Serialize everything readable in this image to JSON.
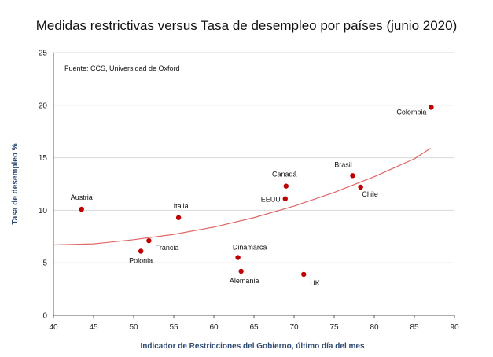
{
  "chart_data": {
    "type": "scatter",
    "title": "Medidas restrictivas versus Tasa de desempleo por países (junio 2020)",
    "xlabel": "Indicador de Restricciones del Gobierno, último día del mes",
    "ylabel": "Tasa de desempleo %",
    "annotation": "Fuente: CCS, Universidad de Oxford",
    "xlim": [
      40,
      90
    ],
    "ylim": [
      0,
      25
    ],
    "xticks": [
      40,
      45,
      50,
      55,
      60,
      65,
      70,
      75,
      80,
      85,
      90
    ],
    "yticks": [
      0,
      5,
      10,
      15,
      20,
      25
    ],
    "grid": {
      "x": false,
      "y": true
    },
    "colors": {
      "points": "#c00000",
      "trend": "#e06666",
      "grid": "#d9d9d9",
      "axis": "#595959",
      "axis_title": "#2f4b73"
    },
    "points": [
      {
        "label": "Austria",
        "x": 43.5,
        "y": 10.1
      },
      {
        "label": "Polonia",
        "x": 50.9,
        "y": 6.1
      },
      {
        "label": "Francia",
        "x": 51.9,
        "y": 7.1
      },
      {
        "label": "Italia",
        "x": 55.6,
        "y": 9.3
      },
      {
        "label": "Dinamarca",
        "x": 63.0,
        "y": 5.5
      },
      {
        "label": "Alemania",
        "x": 63.4,
        "y": 4.2
      },
      {
        "label": "Canadá",
        "x": 69.0,
        "y": 12.3
      },
      {
        "label": "EEUU",
        "x": 68.9,
        "y": 11.1
      },
      {
        "label": "UK",
        "x": 71.2,
        "y": 3.9
      },
      {
        "label": "Brasil",
        "x": 77.3,
        "y": 13.3
      },
      {
        "label": "Chile",
        "x": 78.3,
        "y": 12.2
      },
      {
        "label": "Colombia",
        "x": 87.1,
        "y": 19.8
      }
    ],
    "trendline": {
      "type": "polynomial",
      "x": [
        40,
        45,
        50,
        55,
        60,
        65,
        70,
        75,
        80,
        85,
        87
      ],
      "y": [
        6.7,
        6.8,
        7.2,
        7.7,
        8.4,
        9.3,
        10.4,
        11.7,
        13.2,
        14.9,
        15.9
      ]
    }
  }
}
